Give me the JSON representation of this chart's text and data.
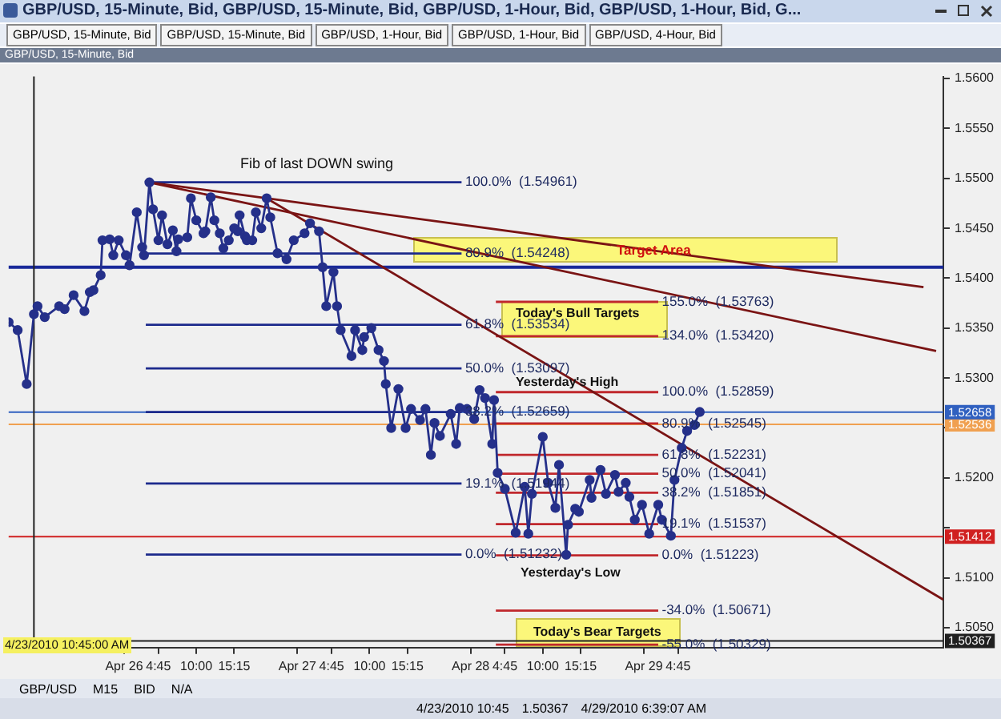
{
  "chart_data": {
    "type": "line",
    "title": "GBP/USD, 15-Minute, Bid, GBP/USD, 15-Minute, Bid, GBP/USD, 1-Hour, Bid, GBP/USD, 1-Hour, Bid, G...",
    "subtitle": "GBP/USD, 15-Minute, Bid",
    "xlim": [
      "2010-04-25T08:00",
      "2010-04-30T17:30"
    ],
    "ylim": [
      1.503,
      1.5602
    ],
    "xticks": [
      {
        "value": "2010-04-26",
        "label": "Apr 26"
      },
      {
        "value": "2010-04-26T04:45",
        "label": "4:45"
      },
      {
        "value": "2010-04-26T10:00",
        "label": "10:00"
      },
      {
        "value": "2010-04-26T15:15",
        "label": "15:15"
      },
      {
        "value": "2010-04-27",
        "label": "Apr 27"
      },
      {
        "value": "2010-04-27T04:45",
        "label": "4:45"
      },
      {
        "value": "2010-04-27T10:00",
        "label": "10:00"
      },
      {
        "value": "2010-04-27T15:15",
        "label": "15:15"
      },
      {
        "value": "2010-04-28",
        "label": "Apr 28"
      },
      {
        "value": "2010-04-28T04:45",
        "label": "4:45"
      },
      {
        "value": "2010-04-28T10:00",
        "label": "10:00"
      },
      {
        "value": "2010-04-28T15:15",
        "label": "15:15"
      },
      {
        "value": "2010-04-29",
        "label": "Apr 29"
      },
      {
        "value": "2010-04-29T04:45",
        "label": "4:45"
      }
    ],
    "yticks": [
      {
        "value": 1.505,
        "label": "1.5050"
      },
      {
        "value": 1.51,
        "label": "1.5100"
      },
      {
        "value": 1.515,
        "label": null
      },
      {
        "value": 1.52,
        "label": "1.5200"
      },
      {
        "value": 1.525,
        "label": null
      },
      {
        "value": 1.53,
        "label": "1.5300"
      },
      {
        "value": 1.535,
        "label": "1.5350"
      },
      {
        "value": 1.54,
        "label": "1.5400"
      },
      {
        "value": 1.545,
        "label": "1.5450"
      },
      {
        "value": 1.55,
        "label": "1.5500"
      },
      {
        "value": 1.555,
        "label": "1.5550"
      },
      {
        "value": 1.56,
        "label": "1.5600"
      }
    ],
    "grid": false,
    "legend": false,
    "marker": "circle",
    "line_style": "solid",
    "series": [
      {
        "color": "#25308a",
        "x": [
          "2010-04-25T08:00",
          "2010-04-25T09:15",
          "2010-04-25T10:30",
          "2010-04-25T11:30",
          "2010-04-25T12:00",
          "2010-04-25T13:00",
          "2010-04-25T15:00",
          "2010-04-25T15:45",
          "2010-04-25T17:00",
          "2010-04-25T18:30",
          "2010-04-25T19:15",
          "2010-04-25T19:45",
          "2010-04-25T20:45",
          "2010-04-25T21:00",
          "2010-04-25T22:00",
          "2010-04-25T22:30",
          "2010-04-25T23:15",
          "2010-04-26T00:15",
          "2010-04-26T00:45",
          "2010-04-26T01:45",
          "2010-04-26T02:30",
          "2010-04-26T02:45",
          "2010-04-26T03:30",
          "2010-04-26T04:00",
          "2010-04-26T04:45",
          "2010-04-26T05:15",
          "2010-04-26T06:00",
          "2010-04-26T06:45",
          "2010-04-26T07:15",
          "2010-04-26T07:30",
          "2010-04-26T08:45",
          "2010-04-26T09:15",
          "2010-04-26T10:00",
          "2010-04-26T11:00",
          "2010-04-26T11:15",
          "2010-04-26T12:00",
          "2010-04-26T12:30",
          "2010-04-26T13:15",
          "2010-04-26T13:45",
          "2010-04-26T14:30",
          "2010-04-26T15:15",
          "2010-04-26T15:45",
          "2010-04-26T16:00",
          "2010-04-26T16:45",
          "2010-04-26T17:00",
          "2010-04-26T17:45",
          "2010-04-26T18:15",
          "2010-04-26T19:00",
          "2010-04-26T19:45",
          "2010-04-26T20:15",
          "2010-04-26T21:15",
          "2010-04-26T22:30",
          "2010-04-26T23:30",
          "2010-04-27T01:00",
          "2010-04-27T01:45",
          "2010-04-27T03:00",
          "2010-04-27T03:30",
          "2010-04-27T04:00",
          "2010-04-27T05:00",
          "2010-04-27T05:30",
          "2010-04-27T06:00",
          "2010-04-27T07:30",
          "2010-04-27T08:00",
          "2010-04-27T09:00",
          "2010-04-27T09:15",
          "2010-04-27T10:15",
          "2010-04-27T11:15",
          "2010-04-27T12:00",
          "2010-04-27T12:15",
          "2010-04-27T13:00",
          "2010-04-27T14:00",
          "2010-04-27T15:00",
          "2010-04-27T15:45",
          "2010-04-27T17:00",
          "2010-04-27T17:45",
          "2010-04-27T18:30",
          "2010-04-27T19:00",
          "2010-04-27T19:45",
          "2010-04-27T21:15",
          "2010-04-27T22:00",
          "2010-04-27T22:30",
          "2010-04-27T23:30",
          "2010-04-28T00:30",
          "2010-04-28T01:15",
          "2010-04-28T02:00",
          "2010-04-28T03:00",
          "2010-04-28T03:15",
          "2010-04-28T03:45",
          "2010-04-28T04:45",
          "2010-04-28T06:15",
          "2010-04-28T07:30",
          "2010-04-28T08:00",
          "2010-04-28T08:30",
          "2010-04-28T10:00",
          "2010-04-28T10:45",
          "2010-04-28T11:45",
          "2010-04-28T12:15",
          "2010-04-28T13:15",
          "2010-04-28T13:30",
          "2010-04-28T14:30",
          "2010-04-28T15:00",
          "2010-04-28T16:30",
          "2010-04-28T16:45",
          "2010-04-28T18:00",
          "2010-04-28T18:45",
          "2010-04-28T20:00",
          "2010-04-28T20:30",
          "2010-04-28T21:30",
          "2010-04-28T22:00",
          "2010-04-28T22:45",
          "2010-04-28T23:45",
          "2010-04-29T00:45",
          "2010-04-29T02:00",
          "2010-04-29T02:30",
          "2010-04-29T03:45",
          "2010-04-29T04:15",
          "2010-04-29T05:15",
          "2010-04-29T06:00",
          "2010-04-29T07:00",
          "2010-04-29T07:45"
        ],
        "values": [
          1.5356,
          1.5348,
          1.5294,
          1.5364,
          1.5372,
          1.5361,
          1.5372,
          1.5369,
          1.5383,
          1.5367,
          1.5386,
          1.5388,
          1.5403,
          1.5438,
          1.5439,
          1.5423,
          1.5438,
          1.5423,
          1.5413,
          1.5466,
          1.5431,
          1.5423,
          1.5496,
          1.5469,
          1.5438,
          1.5463,
          1.5434,
          1.5448,
          1.5427,
          1.5439,
          1.5441,
          1.548,
          1.5458,
          1.5445,
          1.5447,
          1.5481,
          1.5458,
          1.5445,
          1.543,
          1.5438,
          1.545,
          1.5447,
          1.5463,
          1.5442,
          1.5438,
          1.5438,
          1.5466,
          1.545,
          1.548,
          1.5461,
          1.5425,
          1.5419,
          1.5438,
          1.5445,
          1.5455,
          1.5447,
          1.5411,
          1.5372,
          1.5406,
          1.5372,
          1.5348,
          1.5322,
          1.5348,
          1.5328,
          1.5341,
          1.535,
          1.5328,
          1.5317,
          1.5294,
          1.525,
          1.5289,
          1.525,
          1.5269,
          1.5258,
          1.5269,
          1.5223,
          1.5255,
          1.5242,
          1.5264,
          1.5234,
          1.527,
          1.5269,
          1.5259,
          1.5288,
          1.528,
          1.5234,
          1.5278,
          1.5205,
          1.5189,
          1.5145,
          1.5191,
          1.5144,
          1.5184,
          1.5241,
          1.5195,
          1.517,
          1.5213,
          1.5123,
          1.5153,
          1.5169,
          1.5166,
          1.5198,
          1.518,
          1.5208,
          1.5184,
          1.5203,
          1.5186,
          1.5195,
          1.5181,
          1.5158,
          1.5173,
          1.5144,
          1.5173,
          1.5158,
          1.5142,
          1.5198,
          1.523,
          1.5247,
          1.5253,
          1.5266
        ]
      },
      {
        "type": "line",
        "marker": "none",
        "color": "#7a1414",
        "x": [
          "2010-04-26T03:30",
          "2010-04-30T14:45"
        ],
        "values": [
          1.5496,
          1.5391
        ]
      },
      {
        "type": "line",
        "marker": "none",
        "color": "#7a1414",
        "x": [
          "2010-04-26T03:30",
          "2010-04-30T16:30"
        ],
        "values": [
          1.5496,
          1.5327
        ]
      },
      {
        "type": "line",
        "marker": "none",
        "color": "#7a1414",
        "x": [
          "2010-04-26T19:45",
          "2010-04-30T17:30"
        ],
        "values": [
          1.548,
          1.5078
        ]
      },
      {
        "type": "line",
        "marker": "none",
        "color": "#1c2a8c",
        "x": [
          "2010-04-26T03:00",
          "2010-04-27T22:45"
        ],
        "values": [
          1.54961,
          1.54961
        ]
      },
      {
        "type": "line",
        "marker": "none",
        "color": "#1c2a8c",
        "x": [
          "2010-04-26T03:00",
          "2010-04-27T22:45"
        ],
        "values": [
          1.54248,
          1.54248
        ]
      },
      {
        "type": "line",
        "marker": "none",
        "color": "#1c2a8c",
        "x": [
          "2010-04-26T03:00",
          "2010-04-27T22:45"
        ],
        "values": [
          1.53534,
          1.53534
        ]
      },
      {
        "type": "line",
        "marker": "none",
        "color": "#1c2a8c",
        "x": [
          "2010-04-26T03:00",
          "2010-04-27T22:45"
        ],
        "values": [
          1.53097,
          1.53097
        ]
      },
      {
        "type": "line",
        "marker": "none",
        "color": "#1c2a8c",
        "x": [
          "2010-04-26T03:00",
          "2010-04-27T22:45"
        ],
        "values": [
          1.52659,
          1.52659
        ]
      },
      {
        "type": "line",
        "marker": "none",
        "color": "#1c2a8c",
        "x": [
          "2010-04-26T03:00",
          "2010-04-27T22:45"
        ],
        "values": [
          1.51944,
          1.51944
        ]
      },
      {
        "type": "line",
        "marker": "none",
        "color": "#1c2a8c",
        "x": [
          "2010-04-26T03:00",
          "2010-04-27T22:45"
        ],
        "values": [
          1.51232,
          1.51232
        ]
      },
      {
        "type": "line",
        "marker": "none",
        "color": "#c0282d",
        "x": [
          "2010-04-28T03:30",
          "2010-04-29T02:00"
        ],
        "values": [
          1.53763,
          1.53763
        ]
      },
      {
        "type": "line",
        "marker": "none",
        "color": "#c0282d",
        "x": [
          "2010-04-28T03:30",
          "2010-04-29T02:00"
        ],
        "values": [
          1.5342,
          1.5342
        ]
      },
      {
        "type": "line",
        "marker": "none",
        "color": "#c0282d",
        "x": [
          "2010-04-28T03:30",
          "2010-04-29T02:00"
        ],
        "values": [
          1.52859,
          1.52859
        ]
      },
      {
        "type": "line",
        "marker": "none",
        "color": "#c0282d",
        "x": [
          "2010-04-28T03:30",
          "2010-04-29T02:00"
        ],
        "values": [
          1.52545,
          1.52545
        ]
      },
      {
        "type": "line",
        "marker": "none",
        "color": "#c0282d",
        "x": [
          "2010-04-28T03:30",
          "2010-04-29T02:00"
        ],
        "values": [
          1.52231,
          1.52231
        ]
      },
      {
        "type": "line",
        "marker": "none",
        "color": "#c0282d",
        "x": [
          "2010-04-28T03:30",
          "2010-04-29T02:00"
        ],
        "values": [
          1.52041,
          1.52041
        ]
      },
      {
        "type": "line",
        "marker": "none",
        "color": "#c0282d",
        "x": [
          "2010-04-28T03:30",
          "2010-04-29T02:00"
        ],
        "values": [
          1.51851,
          1.51851
        ]
      },
      {
        "type": "line",
        "marker": "none",
        "color": "#c0282d",
        "x": [
          "2010-04-28T03:30",
          "2010-04-29T02:00"
        ],
        "values": [
          1.51537,
          1.51537
        ]
      },
      {
        "type": "line",
        "marker": "none",
        "color": "#c0282d",
        "x": [
          "2010-04-28T03:30",
          "2010-04-29T02:00"
        ],
        "values": [
          1.51223,
          1.51223
        ]
      },
      {
        "type": "line",
        "marker": "none",
        "color": "#c0282d",
        "x": [
          "2010-04-28T03:30",
          "2010-04-29T02:00"
        ],
        "values": [
          1.50671,
          1.50671
        ]
      },
      {
        "type": "line",
        "marker": "none",
        "color": "#c0282d",
        "x": [
          "2010-04-28T03:30",
          "2010-04-29T02:00"
        ],
        "values": [
          1.50329,
          1.50329
        ]
      }
    ],
    "ref_lines": [
      {
        "axis": "y",
        "value": 1.5411,
        "color": "#1a2a9a"
      },
      {
        "axis": "y",
        "value": 1.52536,
        "label": "1.52536",
        "color": "#f0a050"
      },
      {
        "axis": "y",
        "value": 1.52658,
        "label": "1.52658",
        "color": "#3060c0"
      },
      {
        "axis": "y",
        "value": 1.51412,
        "label": "1.51412",
        "color": "#d02020"
      },
      {
        "axis": "y",
        "value": 1.50367,
        "label": "1.50367",
        "color": "#202020"
      },
      {
        "axis": "x",
        "value": "2010-04-25T11:30",
        "color": "#222222"
      }
    ],
    "annotations": [
      "GBP/USD, 15-Minute, Bid",
      "GBP/USD, 15-Minute, Bid",
      "GBP/USD, 1-Hour, Bid",
      "GBP/USD, 1-Hour, Bid",
      "GBP/USD, 4-Hour, Bid",
      "GBP/USD",
      "M15",
      "BID",
      "N/A",
      "4/23/2010 10:45",
      "1.50367",
      "4/29/2010 6:39:07 AM",
      "4/23/2010 10:45:00 AM",
      "Fib of last DOWN swing",
      "Target Area",
      "Today's Bull Targets",
      "Yesterday's High",
      "Yesterday's Low",
      "Today's Bear Targets",
      {
        "text": "100.0%  (1.54961)",
        "x": "2010-04-27T23:15",
        "y": 1.54961
      },
      {
        "text": "80.9%  (1.54248)",
        "x": "2010-04-27T23:15",
        "y": 1.54248
      },
      {
        "text": "61.8%  (1.53534)",
        "x": "2010-04-27T23:15",
        "y": 1.53534
      },
      {
        "text": "50.0%  (1.53097)",
        "x": "2010-04-27T23:15",
        "y": 1.53097
      },
      {
        "text": "38.2%  (1.52659)",
        "x": "2010-04-27T23:15",
        "y": 1.52659
      },
      {
        "text": "19.1%  (1.51944)",
        "x": "2010-04-27T23:15",
        "y": 1.51944
      },
      {
        "text": "0.0%  (1.51232)",
        "x": "2010-04-27T23:15",
        "y": 1.51232
      },
      {
        "text": "155.0%  (1.53763)",
        "x": "2010-04-29T02:30",
        "y": 1.53763
      },
      {
        "text": "134.0%  (1.53420)",
        "x": "2010-04-29T02:30",
        "y": 1.5342
      },
      {
        "text": "100.0%  (1.52859)",
        "x": "2010-04-29T02:30",
        "y": 1.52859
      },
      {
        "text": "80.9%  (1.52545)",
        "x": "2010-04-29T02:30",
        "y": 1.52545
      },
      {
        "text": "61.8%  (1.52231)",
        "x": "2010-04-29T02:30",
        "y": 1.52231
      },
      {
        "text": "50.0%  (1.52041)",
        "x": "2010-04-29T02:30",
        "y": 1.52041
      },
      {
        "text": "38.2%  (1.51851)",
        "x": "2010-04-29T02:30",
        "y": 1.51851
      },
      {
        "text": "19.1%  (1.51537)",
        "x": "2010-04-29T02:30",
        "y": 1.51537
      },
      {
        "text": "0.0%  (1.51223)",
        "x": "2010-04-29T02:30",
        "y": 1.51223
      },
      {
        "text": "-34.0%  (1.50671)",
        "x": "2010-04-29T02:30",
        "y": 1.50671
      },
      {
        "text": "-55.0%  (1.50329)",
        "x": "2010-04-29T02:30",
        "y": 1.50329
      }
    ]
  }
}
